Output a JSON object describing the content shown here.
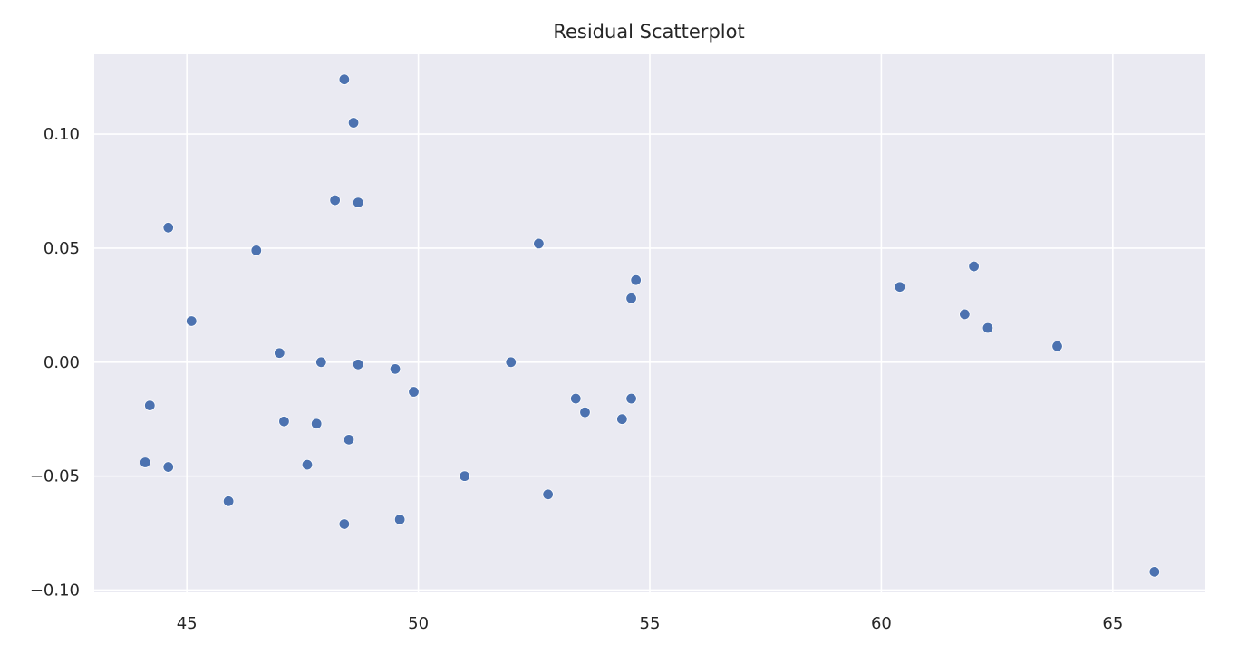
{
  "chart_data": {
    "type": "scatter",
    "title": "Residual Scatterplot",
    "xlabel": "",
    "ylabel": "",
    "xlim": [
      43.0,
      67.0
    ],
    "ylim": [
      -0.101,
      0.135
    ],
    "xticks": [
      45,
      50,
      55,
      60,
      65
    ],
    "xtick_labels": [
      "45",
      "50",
      "55",
      "60",
      "65"
    ],
    "yticks": [
      -0.1,
      -0.05,
      0.0,
      0.05,
      0.1
    ],
    "ytick_labels": [
      "−0.10",
      "−0.05",
      "0.00",
      "0.05",
      "0.10"
    ],
    "grid": true,
    "background_color": "#eaeaf2",
    "point_color": "#4c72b0",
    "points": [
      {
        "x": 44.1,
        "y": -0.044
      },
      {
        "x": 44.2,
        "y": -0.019
      },
      {
        "x": 44.6,
        "y": -0.046
      },
      {
        "x": 44.6,
        "y": 0.059
      },
      {
        "x": 45.1,
        "y": 0.018
      },
      {
        "x": 45.9,
        "y": -0.061
      },
      {
        "x": 46.5,
        "y": 0.049
      },
      {
        "x": 47.0,
        "y": 0.004
      },
      {
        "x": 47.1,
        "y": -0.026
      },
      {
        "x": 47.6,
        "y": -0.045
      },
      {
        "x": 47.8,
        "y": -0.027
      },
      {
        "x": 47.9,
        "y": 0.0
      },
      {
        "x": 48.2,
        "y": 0.071
      },
      {
        "x": 48.4,
        "y": 0.124
      },
      {
        "x": 48.4,
        "y": -0.071
      },
      {
        "x": 48.5,
        "y": -0.034
      },
      {
        "x": 48.6,
        "y": 0.105
      },
      {
        "x": 48.7,
        "y": 0.07
      },
      {
        "x": 48.7,
        "y": -0.001
      },
      {
        "x": 49.5,
        "y": -0.003
      },
      {
        "x": 49.6,
        "y": -0.069
      },
      {
        "x": 49.9,
        "y": -0.013
      },
      {
        "x": 51.0,
        "y": -0.05
      },
      {
        "x": 52.0,
        "y": 0.0
      },
      {
        "x": 52.6,
        "y": 0.052
      },
      {
        "x": 52.8,
        "y": -0.058
      },
      {
        "x": 53.4,
        "y": -0.016
      },
      {
        "x": 53.6,
        "y": -0.022
      },
      {
        "x": 54.4,
        "y": -0.025
      },
      {
        "x": 54.6,
        "y": -0.016
      },
      {
        "x": 54.6,
        "y": 0.028
      },
      {
        "x": 54.7,
        "y": 0.036
      },
      {
        "x": 60.4,
        "y": 0.033
      },
      {
        "x": 61.8,
        "y": 0.021
      },
      {
        "x": 62.0,
        "y": 0.042
      },
      {
        "x": 62.3,
        "y": 0.015
      },
      {
        "x": 63.8,
        "y": 0.007
      },
      {
        "x": 65.9,
        "y": -0.092
      }
    ]
  }
}
